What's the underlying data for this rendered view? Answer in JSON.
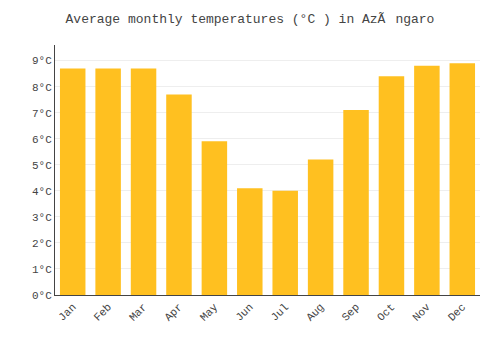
{
  "chart_data": {
    "type": "bar",
    "title": "Average monthly temperatures (°C ) in AzÃngaro",
    "categories": [
      "Jan",
      "Feb",
      "Mar",
      "Apr",
      "May",
      "Jun",
      "Jul",
      "Aug",
      "Sep",
      "Oct",
      "Nov",
      "Dec"
    ],
    "values": [
      8.7,
      8.7,
      8.7,
      7.7,
      5.9,
      4.1,
      4.0,
      5.2,
      7.1,
      8.4,
      8.8,
      8.9
    ],
    "color": "#FFC020",
    "ylim": [
      0,
      9.6
    ],
    "yticks": [
      {
        "value": 0,
        "label": "0°C"
      },
      {
        "value": 1,
        "label": "1°C"
      },
      {
        "value": 2,
        "label": "2°C"
      },
      {
        "value": 3,
        "label": "3°C"
      },
      {
        "value": 4,
        "label": "4°C"
      },
      {
        "value": 5,
        "label": "5°C"
      },
      {
        "value": 6,
        "label": "6°C"
      },
      {
        "value": 7,
        "label": "7°C"
      },
      {
        "value": 8,
        "label": "8°C"
      },
      {
        "value": 9,
        "label": "9°C"
      }
    ],
    "grid": true
  }
}
